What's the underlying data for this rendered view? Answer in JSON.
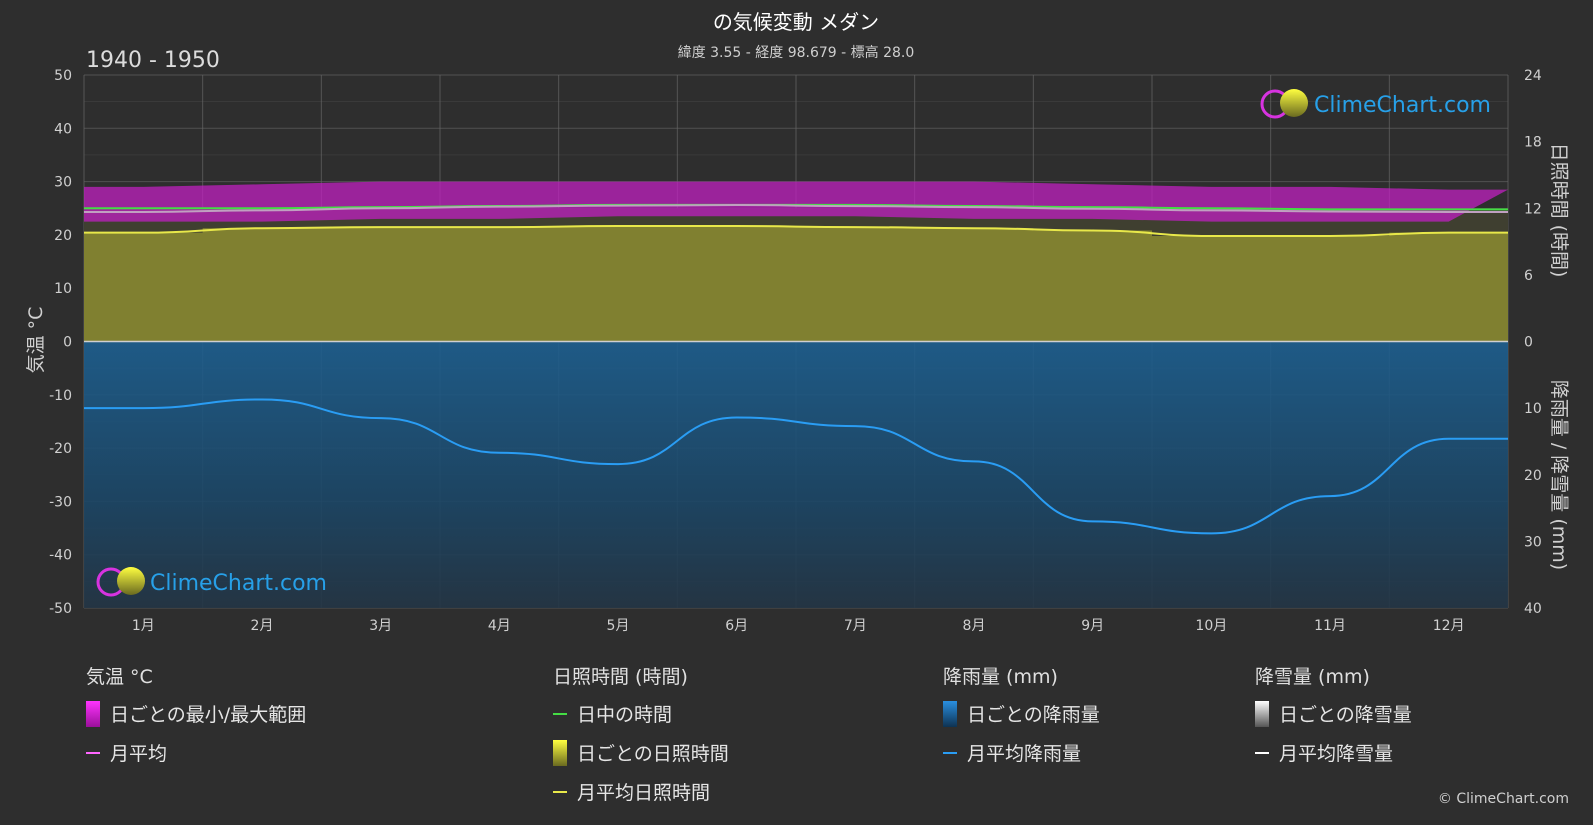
{
  "header": {
    "title": "の気候変動 メダン",
    "subtitle": "緯度 3.55 - 経度 98.679 - 標高 28.0",
    "period": "1940 - 1950"
  },
  "brand": {
    "name": "ClimeChart.com",
    "copyright": "© ClimeChart.com"
  },
  "axes": {
    "left_title": "気温 °C",
    "right_top_title": "日照時間 (時間)",
    "right_bottom_title": "降雨量 / 降雪量 (mm)",
    "left_ticks": [
      "50",
      "40",
      "30",
      "20",
      "10",
      "0",
      "-10",
      "-20",
      "-30",
      "-40",
      "-50"
    ],
    "right_top_ticks": [
      "24",
      "18",
      "12",
      "6",
      "0"
    ],
    "right_bottom_ticks": [
      "10",
      "20",
      "30",
      "40"
    ]
  },
  "legend": {
    "temperature": {
      "head": "気温 °C",
      "range": "日ごとの最小/最大範囲",
      "mean": "月平均"
    },
    "sunshine": {
      "head": "日照時間 (時間)",
      "daylight": "日中の時間",
      "daily": "日ごとの日照時間",
      "mean": "月平均日照時間"
    },
    "rain": {
      "head": "降雨量 (mm)",
      "daily": "日ごとの降雨量",
      "mean": "月平均降雨量"
    },
    "snow": {
      "head": "降雪量 (mm)",
      "daily": "日ごとの降雪量",
      "mean": "月平均降雪量"
    }
  },
  "colors": {
    "background": "#2e2e2e",
    "temp_range": "#c81ec8",
    "temp_mean": "#ff66ff",
    "daylight": "#44dd44",
    "sunshine": "#9a9a2a",
    "sunshine_mean": "#e8e84a",
    "rain": "#1f6fa8",
    "rain_mean": "#2a9df4",
    "snow": "#ffffff"
  },
  "chart_data": {
    "type": "area",
    "categories": [
      "1月",
      "2月",
      "3月",
      "4月",
      "5月",
      "6月",
      "7月",
      "8月",
      "9月",
      "10月",
      "11月",
      "12月"
    ],
    "temp_ylim": [
      -50,
      50
    ],
    "sunshine_ylim": [
      0,
      24
    ],
    "precip_ylim": [
      0,
      40
    ],
    "series": [
      {
        "name": "日ごとの最小/最大範囲",
        "axis": "temp",
        "min": [
          22.5,
          22.5,
          23,
          23,
          23.5,
          23.5,
          23.5,
          23,
          23,
          22.5,
          22.5,
          22.5
        ],
        "max": [
          29,
          29.5,
          30,
          30,
          30,
          30,
          30,
          30,
          29.5,
          29,
          29,
          28.5
        ]
      },
      {
        "name": "月平均",
        "axis": "temp",
        "values": [
          24.3,
          24.6,
          25.0,
          25.3,
          25.5,
          25.6,
          25.4,
          25.2,
          24.9,
          24.6,
          24.4,
          24.3
        ]
      },
      {
        "name": "日中の時間",
        "axis": "sunshine",
        "values": [
          12.0,
          12.0,
          12.1,
          12.2,
          12.3,
          12.3,
          12.3,
          12.2,
          12.1,
          12.0,
          11.9,
          11.9
        ]
      },
      {
        "name": "月平均日照時間",
        "axis": "sunshine",
        "values": [
          9.8,
          10.2,
          10.3,
          10.3,
          10.4,
          10.4,
          10.3,
          10.2,
          10.0,
          9.5,
          9.5,
          9.8
        ]
      },
      {
        "name": "月平均降雨量",
        "axis": "precip",
        "values": [
          10.0,
          8.7,
          11.5,
          16.7,
          18.4,
          11.4,
          12.7,
          18.0,
          27.0,
          28.8,
          23.2,
          14.6
        ]
      },
      {
        "name": "月平均降雪量",
        "axis": "precip",
        "values": [
          0,
          0,
          0,
          0,
          0,
          0,
          0,
          0,
          0,
          0,
          0,
          0
        ]
      }
    ]
  }
}
